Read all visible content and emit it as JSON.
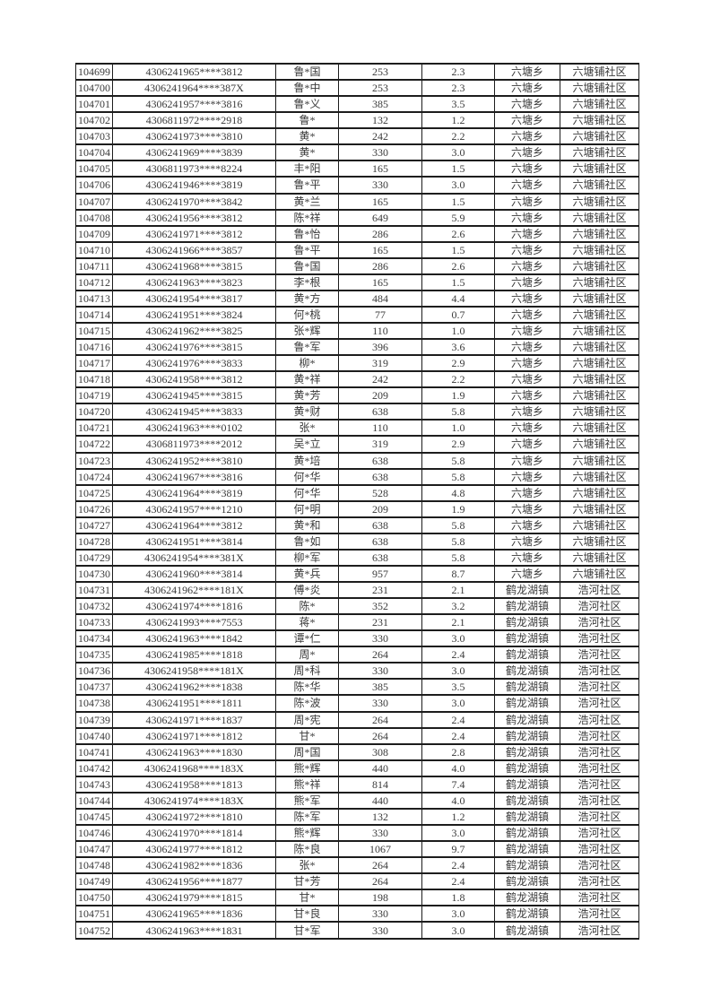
{
  "colors": {
    "page_background": "#ffffff",
    "grid_border": "#1d1d1d",
    "text": "#3a3a3a"
  },
  "table": {
    "column_names": [
      "serial-number",
      "masked-id",
      "name",
      "amount",
      "rate",
      "township",
      "community"
    ],
    "rows": [
      [
        "104699",
        "4306241965****3812",
        "鲁*国",
        "253",
        "2.3",
        "六塘乡",
        "六塘铺社区"
      ],
      [
        "104700",
        "4306241964****387X",
        "鲁*中",
        "253",
        "2.3",
        "六塘乡",
        "六塘铺社区"
      ],
      [
        "104701",
        "4306241957****3816",
        "鲁*义",
        "385",
        "3.5",
        "六塘乡",
        "六塘铺社区"
      ],
      [
        "104702",
        "4306811972****2918",
        "鲁*",
        "132",
        "1.2",
        "六塘乡",
        "六塘铺社区"
      ],
      [
        "104703",
        "4306241973****3810",
        "黄*",
        "242",
        "2.2",
        "六塘乡",
        "六塘铺社区"
      ],
      [
        "104704",
        "4306241969****3839",
        "黄*",
        "330",
        "3.0",
        "六塘乡",
        "六塘铺社区"
      ],
      [
        "104705",
        "4306811973****8224",
        "丰*阳",
        "165",
        "1.5",
        "六塘乡",
        "六塘铺社区"
      ],
      [
        "104706",
        "4306241946****3819",
        "鲁*平",
        "330",
        "3.0",
        "六塘乡",
        "六塘铺社区"
      ],
      [
        "104707",
        "4306241970****3842",
        "黄*兰",
        "165",
        "1.5",
        "六塘乡",
        "六塘铺社区"
      ],
      [
        "104708",
        "4306241956****3812",
        "陈*祥",
        "649",
        "5.9",
        "六塘乡",
        "六塘铺社区"
      ],
      [
        "104709",
        "4306241971****3812",
        "鲁*怡",
        "286",
        "2.6",
        "六塘乡",
        "六塘铺社区"
      ],
      [
        "104710",
        "4306241966****3857",
        "鲁*平",
        "165",
        "1.5",
        "六塘乡",
        "六塘铺社区"
      ],
      [
        "104711",
        "4306241968****3815",
        "鲁*国",
        "286",
        "2.6",
        "六塘乡",
        "六塘铺社区"
      ],
      [
        "104712",
        "4306241963****3823",
        "李*根",
        "165",
        "1.5",
        "六塘乡",
        "六塘铺社区"
      ],
      [
        "104713",
        "4306241954****3817",
        "黄*方",
        "484",
        "4.4",
        "六塘乡",
        "六塘铺社区"
      ],
      [
        "104714",
        "4306241951****3824",
        "何*桃",
        "77",
        "0.7",
        "六塘乡",
        "六塘铺社区"
      ],
      [
        "104715",
        "4306241962****3825",
        "张*辉",
        "110",
        "1.0",
        "六塘乡",
        "六塘铺社区"
      ],
      [
        "104716",
        "4306241976****3815",
        "鲁*军",
        "396",
        "3.6",
        "六塘乡",
        "六塘铺社区"
      ],
      [
        "104717",
        "4306241976****3833",
        "柳*",
        "319",
        "2.9",
        "六塘乡",
        "六塘铺社区"
      ],
      [
        "104718",
        "4306241958****3812",
        "黄*祥",
        "242",
        "2.2",
        "六塘乡",
        "六塘铺社区"
      ],
      [
        "104719",
        "4306241945****3815",
        "黄*芳",
        "209",
        "1.9",
        "六塘乡",
        "六塘铺社区"
      ],
      [
        "104720",
        "4306241945****3833",
        "黄*财",
        "638",
        "5.8",
        "六塘乡",
        "六塘铺社区"
      ],
      [
        "104721",
        "4306241963****0102",
        "张*",
        "110",
        "1.0",
        "六塘乡",
        "六塘铺社区"
      ],
      [
        "104722",
        "4306811973****2012",
        "吴*立",
        "319",
        "2.9",
        "六塘乡",
        "六塘铺社区"
      ],
      [
        "104723",
        "4306241952****3810",
        "黄*培",
        "638",
        "5.8",
        "六塘乡",
        "六塘铺社区"
      ],
      [
        "104724",
        "4306241967****3816",
        "何*华",
        "638",
        "5.8",
        "六塘乡",
        "六塘铺社区"
      ],
      [
        "104725",
        "4306241964****3819",
        "何*华",
        "528",
        "4.8",
        "六塘乡",
        "六塘铺社区"
      ],
      [
        "104726",
        "4306241957****1210",
        "何*明",
        "209",
        "1.9",
        "六塘乡",
        "六塘铺社区"
      ],
      [
        "104727",
        "4306241964****3812",
        "黄*和",
        "638",
        "5.8",
        "六塘乡",
        "六塘铺社区"
      ],
      [
        "104728",
        "4306241951****3814",
        "鲁*如",
        "638",
        "5.8",
        "六塘乡",
        "六塘铺社区"
      ],
      [
        "104729",
        "4306241954****381X",
        "柳*军",
        "638",
        "5.8",
        "六塘乡",
        "六塘铺社区"
      ],
      [
        "104730",
        "4306241960****3814",
        "黄*兵",
        "957",
        "8.7",
        "六塘乡",
        "六塘铺社区"
      ],
      [
        "104731",
        "4306241962****181X",
        "傅*炎",
        "231",
        "2.1",
        "鹤龙湖镇",
        "浩河社区"
      ],
      [
        "104732",
        "4306241974****1816",
        "陈*",
        "352",
        "3.2",
        "鹤龙湖镇",
        "浩河社区"
      ],
      [
        "104733",
        "4306241993****7553",
        "蒋*",
        "231",
        "2.1",
        "鹤龙湖镇",
        "浩河社区"
      ],
      [
        "104734",
        "4306241963****1842",
        "谭*仁",
        "330",
        "3.0",
        "鹤龙湖镇",
        "浩河社区"
      ],
      [
        "104735",
        "4306241985****1818",
        "周*",
        "264",
        "2.4",
        "鹤龙湖镇",
        "浩河社区"
      ],
      [
        "104736",
        "4306241958****181X",
        "周*科",
        "330",
        "3.0",
        "鹤龙湖镇",
        "浩河社区"
      ],
      [
        "104737",
        "4306241962****1838",
        "陈*华",
        "385",
        "3.5",
        "鹤龙湖镇",
        "浩河社区"
      ],
      [
        "104738",
        "4306241951****1811",
        "陈*波",
        "330",
        "3.0",
        "鹤龙湖镇",
        "浩河社区"
      ],
      [
        "104739",
        "4306241971****1837",
        "周*宪",
        "264",
        "2.4",
        "鹤龙湖镇",
        "浩河社区"
      ],
      [
        "104740",
        "4306241971****1812",
        "甘*",
        "264",
        "2.4",
        "鹤龙湖镇",
        "浩河社区"
      ],
      [
        "104741",
        "4306241963****1830",
        "周*国",
        "308",
        "2.8",
        "鹤龙湖镇",
        "浩河社区"
      ],
      [
        "104742",
        "4306241968****183X",
        "熊*辉",
        "440",
        "4.0",
        "鹤龙湖镇",
        "浩河社区"
      ],
      [
        "104743",
        "4306241958****1813",
        "熊*祥",
        "814",
        "7.4",
        "鹤龙湖镇",
        "浩河社区"
      ],
      [
        "104744",
        "4306241974****183X",
        "熊*军",
        "440",
        "4.0",
        "鹤龙湖镇",
        "浩河社区"
      ],
      [
        "104745",
        "4306241972****1810",
        "陈*军",
        "132",
        "1.2",
        "鹤龙湖镇",
        "浩河社区"
      ],
      [
        "104746",
        "4306241970****1814",
        "熊*辉",
        "330",
        "3.0",
        "鹤龙湖镇",
        "浩河社区"
      ],
      [
        "104747",
        "4306241977****1812",
        "陈*良",
        "1067",
        "9.7",
        "鹤龙湖镇",
        "浩河社区"
      ],
      [
        "104748",
        "4306241982****1836",
        "张*",
        "264",
        "2.4",
        "鹤龙湖镇",
        "浩河社区"
      ],
      [
        "104749",
        "4306241956****1877",
        "甘*芳",
        "264",
        "2.4",
        "鹤龙湖镇",
        "浩河社区"
      ],
      [
        "104750",
        "4306241979****1815",
        "甘*",
        "198",
        "1.8",
        "鹤龙湖镇",
        "浩河社区"
      ],
      [
        "104751",
        "4306241965****1836",
        "甘*良",
        "330",
        "3.0",
        "鹤龙湖镇",
        "浩河社区"
      ],
      [
        "104752",
        "4306241963****1831",
        "甘*军",
        "330",
        "3.0",
        "鹤龙湖镇",
        "浩河社区"
      ]
    ]
  }
}
